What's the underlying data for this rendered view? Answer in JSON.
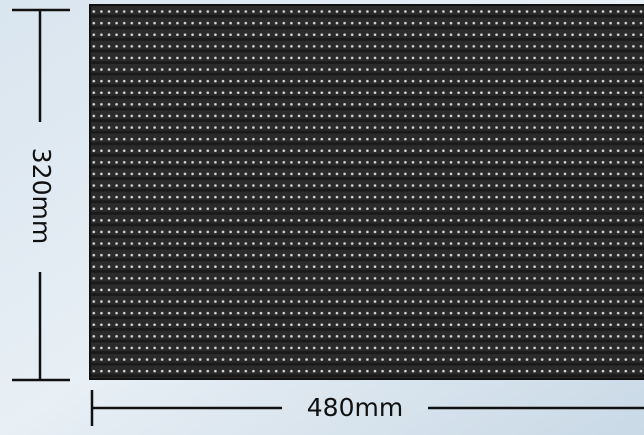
{
  "dimensions": {
    "height": "320mm",
    "width": "480mm"
  }
}
